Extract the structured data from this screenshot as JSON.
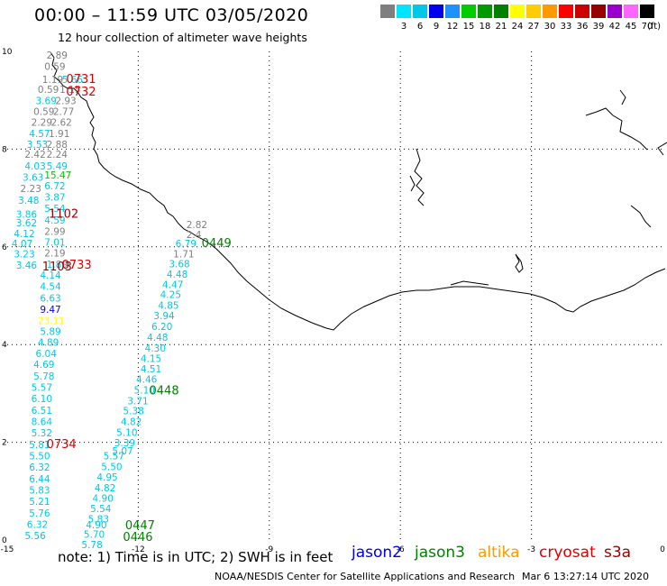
{
  "title": "00:00 – 11:59 UTC 03/05/2020",
  "subtitle": "12 hour collection of altimeter wave heights",
  "note": "note:  1) Time is in UTC;  2) SWH is in feet",
  "credit": "NOAA/NESDIS Center for Satellite Applications and Research",
  "timestamp": "Mar  6 13:27:14 UTC 2020",
  "colorbar": {
    "unit": "(ft)",
    "bins": [
      {
        "label": "",
        "color": "#7f7f7f"
      },
      {
        "label": "3",
        "color": "#00e5ff"
      },
      {
        "label": "6",
        "color": "#00c8e6"
      },
      {
        "label": "9",
        "color": "#0000ee"
      },
      {
        "label": "12",
        "color": "#1e90ff"
      },
      {
        "label": "15",
        "color": "#00cc00"
      },
      {
        "label": "18",
        "color": "#009900"
      },
      {
        "label": "21",
        "color": "#008000"
      },
      {
        "label": "24",
        "color": "#ffff00"
      },
      {
        "label": "27",
        "color": "#ffcc00"
      },
      {
        "label": "30",
        "color": "#ff9900"
      },
      {
        "label": "33",
        "color": "#ff0000"
      },
      {
        "label": "36",
        "color": "#cc0000"
      },
      {
        "label": "39",
        "color": "#990000"
      },
      {
        "label": "42",
        "color": "#9900cc"
      },
      {
        "label": "45",
        "color": "#ff66ff"
      },
      {
        "label": "70",
        "color": "#000000"
      }
    ]
  },
  "satellites": [
    {
      "name": "jason2",
      "color": "#0000dd"
    },
    {
      "name": "jason3",
      "color": "#008000"
    },
    {
      "name": "altika",
      "color": "#ff9900"
    },
    {
      "name": "cryosat",
      "color": "#dd0000"
    },
    {
      "name": "s3a",
      "color": "#990000"
    }
  ],
  "map": {
    "lon_range": [
      -15,
      0
    ],
    "lat_range": [
      0,
      10
    ],
    "lon_ticks": [
      "-15",
      "-12",
      "-9",
      "-6",
      "-3",
      "0"
    ],
    "lat_ticks": [
      "0",
      "2",
      "4",
      "6",
      "8",
      "10"
    ],
    "pass_labels": [
      {
        "text": "0731",
        "lon": -13.65,
        "lat": 9.35,
        "color": "#dd0000"
      },
      {
        "text": "0732",
        "lon": -13.65,
        "lat": 9.1,
        "color": "#dd0000"
      },
      {
        "text": "1102",
        "lon": -14.05,
        "lat": 6.6,
        "color": "#990000"
      },
      {
        "text": "0733",
        "lon": -13.75,
        "lat": 5.55,
        "color": "#dd0000"
      },
      {
        "text": "1103",
        "lon": -14.2,
        "lat": 5.52,
        "color": "#990000"
      },
      {
        "text": "0449",
        "lon": -10.55,
        "lat": 6.0,
        "color": "#008000"
      },
      {
        "text": "0448",
        "lon": -11.75,
        "lat": 2.98,
        "color": "#008000"
      },
      {
        "text": "0734",
        "lon": -14.1,
        "lat": 1.88,
        "color": "#dd0000"
      },
      {
        "text": "0447",
        "lon": -12.3,
        "lat": 0.22,
        "color": "#008000"
      },
      {
        "text": "0446",
        "lon": -12.35,
        "lat": -0.02,
        "color": "#008000"
      }
    ],
    "observations": [
      {
        "v": "2.89",
        "lon": -14.1,
        "lat": 9.85,
        "c": "#7f7f7f"
      },
      {
        "v": "0.59",
        "lon": -14.15,
        "lat": 9.62,
        "c": "#7f7f7f"
      },
      {
        "v": "5.66",
        "lon": -13.75,
        "lat": 9.35,
        "c": "#00c8e6"
      },
      {
        "v": "1.19",
        "lon": -14.2,
        "lat": 9.35,
        "c": "#7f7f7f"
      },
      {
        "v": "0.59",
        "lon": -14.3,
        "lat": 9.15,
        "c": "#7f7f7f"
      },
      {
        "v": "1.15",
        "lon": -13.8,
        "lat": 9.15,
        "c": "#7f7f7f"
      },
      {
        "v": "3.69",
        "lon": -14.35,
        "lat": 8.92,
        "c": "#00c8e6"
      },
      {
        "v": "2.93",
        "lon": -13.9,
        "lat": 8.92,
        "c": "#7f7f7f"
      },
      {
        "v": "0.59",
        "lon": -14.4,
        "lat": 8.7,
        "c": "#7f7f7f"
      },
      {
        "v": "2.77",
        "lon": -13.95,
        "lat": 8.7,
        "c": "#7f7f7f"
      },
      {
        "v": "2.29",
        "lon": -14.45,
        "lat": 8.48,
        "c": "#7f7f7f"
      },
      {
        "v": "2.62",
        "lon": -14.0,
        "lat": 8.48,
        "c": "#7f7f7f"
      },
      {
        "v": "4.57",
        "lon": -14.5,
        "lat": 8.25,
        "c": "#00c8e6"
      },
      {
        "v": "1.91",
        "lon": -14.05,
        "lat": 8.25,
        "c": "#7f7f7f"
      },
      {
        "v": "3.53",
        "lon": -14.55,
        "lat": 8.03,
        "c": "#00c8e6"
      },
      {
        "v": "2.88",
        "lon": -14.1,
        "lat": 8.03,
        "c": "#7f7f7f"
      },
      {
        "v": "2.42",
        "lon": -14.6,
        "lat": 7.82,
        "c": "#7f7f7f"
      },
      {
        "v": "2.24",
        "lon": -14.1,
        "lat": 7.82,
        "c": "#7f7f7f"
      },
      {
        "v": "4.03",
        "lon": -14.6,
        "lat": 7.58,
        "c": "#00c8e6"
      },
      {
        "v": "5.49",
        "lon": -14.1,
        "lat": 7.58,
        "c": "#00c8e6"
      },
      {
        "v": "3.63",
        "lon": -14.65,
        "lat": 7.35,
        "c": "#00c8e6"
      },
      {
        "v": "15.47",
        "lon": -14.15,
        "lat": 7.4,
        "c": "#00cc00"
      },
      {
        "v": "2.23",
        "lon": -14.7,
        "lat": 7.12,
        "c": "#7f7f7f"
      },
      {
        "v": "6.72",
        "lon": -14.15,
        "lat": 7.18,
        "c": "#00c8e6"
      },
      {
        "v": "3.48",
        "lon": -14.75,
        "lat": 6.88,
        "c": "#00c8e6"
      },
      {
        "v": "3.87",
        "lon": -14.15,
        "lat": 6.95,
        "c": "#00c8e6"
      },
      {
        "v": "5.54",
        "lon": -14.15,
        "lat": 6.72,
        "c": "#00c8e6"
      },
      {
        "v": "3.86",
        "lon": -14.8,
        "lat": 6.6,
        "c": "#00c8e6"
      },
      {
        "v": "3.62",
        "lon": -14.8,
        "lat": 6.42,
        "c": "#00c8e6"
      },
      {
        "v": "4.59",
        "lon": -14.15,
        "lat": 6.48,
        "c": "#00c8e6"
      },
      {
        "v": "4.12",
        "lon": -14.85,
        "lat": 6.2,
        "c": "#00c8e6"
      },
      {
        "v": "2.99",
        "lon": -14.15,
        "lat": 6.25,
        "c": "#7f7f7f"
      },
      {
        "v": "4.07",
        "lon": -14.9,
        "lat": 6.0,
        "c": "#00c8e6"
      },
      {
        "v": "7.01",
        "lon": -14.15,
        "lat": 6.02,
        "c": "#00c8e6"
      },
      {
        "v": "3.23",
        "lon": -14.85,
        "lat": 5.78,
        "c": "#00c8e6"
      },
      {
        "v": "2.19",
        "lon": -14.15,
        "lat": 5.8,
        "c": "#7f7f7f"
      },
      {
        "v": "3.46",
        "lon": -14.8,
        "lat": 5.55,
        "c": "#00c8e6"
      },
      {
        "v": "1.89",
        "lon": -14.1,
        "lat": 5.57,
        "c": "#00c8e6"
      },
      {
        "v": "4.14",
        "lon": -14.25,
        "lat": 5.35,
        "c": "#00c8e6"
      },
      {
        "v": "4.54",
        "lon": -14.25,
        "lat": 5.12,
        "c": "#00c8e6"
      },
      {
        "v": "6.63",
        "lon": -14.25,
        "lat": 4.88,
        "c": "#00c8e6"
      },
      {
        "v": "9.47",
        "lon": -14.25,
        "lat": 4.65,
        "c": "#0000ee"
      },
      {
        "v": "23.11",
        "lon": -14.3,
        "lat": 4.42,
        "c": "#ffff00"
      },
      {
        "v": "5.89",
        "lon": -14.25,
        "lat": 4.2,
        "c": "#00c8e6"
      },
      {
        "v": "4.89",
        "lon": -14.3,
        "lat": 3.98,
        "c": "#00c8e6"
      },
      {
        "v": "6.04",
        "lon": -14.35,
        "lat": 3.75,
        "c": "#00c8e6"
      },
      {
        "v": "4.69",
        "lon": -14.4,
        "lat": 3.52,
        "c": "#00c8e6"
      },
      {
        "v": "5.78",
        "lon": -14.4,
        "lat": 3.28,
        "c": "#00c8e6"
      },
      {
        "v": "5.57",
        "lon": -14.45,
        "lat": 3.05,
        "c": "#00c8e6"
      },
      {
        "v": "6.10",
        "lon": -14.45,
        "lat": 2.82,
        "c": "#00c8e6"
      },
      {
        "v": "6.51",
        "lon": -14.45,
        "lat": 2.58,
        "c": "#00c8e6"
      },
      {
        "v": "8.64",
        "lon": -14.45,
        "lat": 2.35,
        "c": "#00c8e6"
      },
      {
        "v": "5.32",
        "lon": -14.45,
        "lat": 2.12,
        "c": "#00c8e6"
      },
      {
        "v": "5.81",
        "lon": -14.5,
        "lat": 1.88,
        "c": "#00c8e6"
      },
      {
        "v": "5.50",
        "lon": -14.5,
        "lat": 1.65,
        "c": "#00c8e6"
      },
      {
        "v": "6.32",
        "lon": -14.5,
        "lat": 1.42,
        "c": "#00c8e6"
      },
      {
        "v": "6.44",
        "lon": -14.5,
        "lat": 1.18,
        "c": "#00c8e6"
      },
      {
        "v": "5.83",
        "lon": -14.5,
        "lat": 0.95,
        "c": "#00c8e6"
      },
      {
        "v": "5.21",
        "lon": -14.5,
        "lat": 0.72,
        "c": "#00c8e6"
      },
      {
        "v": "5.76",
        "lon": -14.5,
        "lat": 0.48,
        "c": "#00c8e6"
      },
      {
        "v": "6.32",
        "lon": -14.55,
        "lat": 0.25,
        "c": "#00c8e6"
      },
      {
        "v": "5.56",
        "lon": -14.6,
        "lat": 0.02,
        "c": "#00c8e6"
      },
      {
        "v": "2.82",
        "lon": -10.9,
        "lat": 6.38,
        "c": "#7f7f7f"
      },
      {
        "v": "2.4",
        "lon": -10.9,
        "lat": 6.18,
        "c": "#7f7f7f"
      },
      {
        "v": "6.79",
        "lon": -11.15,
        "lat": 6.0,
        "c": "#00c8e6"
      },
      {
        "v": "1.71",
        "lon": -11.2,
        "lat": 5.78,
        "c": "#7f7f7f"
      },
      {
        "v": "3.68",
        "lon": -11.3,
        "lat": 5.58,
        "c": "#00c8e6"
      },
      {
        "v": "4.48",
        "lon": -11.35,
        "lat": 5.37,
        "c": "#00c8e6"
      },
      {
        "v": "4.47",
        "lon": -11.45,
        "lat": 5.16,
        "c": "#00c8e6"
      },
      {
        "v": "4.25",
        "lon": -11.5,
        "lat": 4.95,
        "c": "#00c8e6"
      },
      {
        "v": "4.85",
        "lon": -11.55,
        "lat": 4.73,
        "c": "#00c8e6"
      },
      {
        "v": "3.94",
        "lon": -11.65,
        "lat": 4.52,
        "c": "#00c8e6"
      },
      {
        "v": "6.20",
        "lon": -11.7,
        "lat": 4.3,
        "c": "#00c8e6"
      },
      {
        "v": "4.48",
        "lon": -11.8,
        "lat": 4.08,
        "c": "#00c8e6"
      },
      {
        "v": "4.30",
        "lon": -11.85,
        "lat": 3.86,
        "c": "#00c8e6"
      },
      {
        "v": "4.15",
        "lon": -11.95,
        "lat": 3.64,
        "c": "#00c8e6"
      },
      {
        "v": "4.51",
        "lon": -11.95,
        "lat": 3.43,
        "c": "#00c8e6"
      },
      {
        "v": "4.46",
        "lon": -12.05,
        "lat": 3.22,
        "c": "#00c8e6"
      },
      {
        "v": "5.10",
        "lon": -12.1,
        "lat": 3.0,
        "c": "#00c8e6"
      },
      {
        "v": "3.71",
        "lon": -12.25,
        "lat": 2.78,
        "c": "#00c8e6"
      },
      {
        "v": "5.38",
        "lon": -12.35,
        "lat": 2.57,
        "c": "#00c8e6"
      },
      {
        "v": "4.82",
        "lon": -12.4,
        "lat": 2.35,
        "c": "#00c8e6"
      },
      {
        "v": "5.10",
        "lon": -12.5,
        "lat": 2.13,
        "c": "#00c8e6"
      },
      {
        "v": "3.39",
        "lon": -12.55,
        "lat": 1.92,
        "c": "#00c8e6"
      },
      {
        "v": "5.07",
        "lon": -12.6,
        "lat": 1.75,
        "c": "#00c8e6"
      },
      {
        "v": "5.57",
        "lon": -12.8,
        "lat": 1.65,
        "c": "#00c8e6"
      },
      {
        "v": "5.50",
        "lon": -12.85,
        "lat": 1.43,
        "c": "#00c8e6"
      },
      {
        "v": "4.95",
        "lon": -12.95,
        "lat": 1.22,
        "c": "#00c8e6"
      },
      {
        "v": "4.82",
        "lon": -13.0,
        "lat": 1.0,
        "c": "#00c8e6"
      },
      {
        "v": "4.90",
        "lon": -13.05,
        "lat": 0.78,
        "c": "#00c8e6"
      },
      {
        "v": "5.54",
        "lon": -13.1,
        "lat": 0.57,
        "c": "#00c8e6"
      },
      {
        "v": "5.83",
        "lon": -13.15,
        "lat": 0.36,
        "c": "#00c8e6"
      },
      {
        "v": "4.90",
        "lon": -13.2,
        "lat": 0.24,
        "c": "#00c8e6"
      },
      {
        "v": "5.70",
        "lon": -13.25,
        "lat": 0.05,
        "c": "#00c8e6"
      },
      {
        "v": "5.78",
        "lon": -13.3,
        "lat": -0.17,
        "c": "#00c8e6"
      }
    ]
  }
}
